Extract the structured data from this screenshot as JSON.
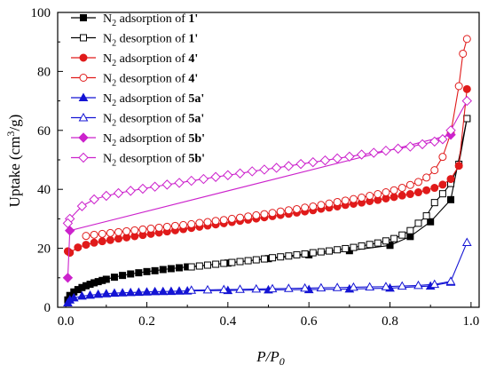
{
  "chart_data": {
    "type": "scatter",
    "xlabel": "P/P0",
    "ylabel": "Uptake (cm3/g)",
    "xlim": [
      -0.02,
      1.02
    ],
    "ylim": [
      0,
      100
    ],
    "x_ticks": [
      0.0,
      0.2,
      0.4,
      0.6,
      0.8,
      1.0
    ],
    "x_tick_labels": [
      "0.0",
      "0.2",
      "0.4",
      "0.6",
      "0.8",
      "1.0"
    ],
    "y_ticks": [
      0,
      20,
      40,
      60,
      80,
      100
    ],
    "y_tick_labels": [
      "0",
      "20",
      "40",
      "60",
      "80",
      "100"
    ],
    "grid": false,
    "legend_position": "top-left",
    "series": [
      {
        "name": "N2 adsorption of 1'",
        "color": "#000000",
        "marker": "square",
        "filled": true,
        "x": [
          0.005,
          0.01,
          0.02,
          0.03,
          0.04,
          0.05,
          0.06,
          0.07,
          0.08,
          0.09,
          0.1,
          0.12,
          0.14,
          0.16,
          0.18,
          0.2,
          0.22,
          0.24,
          0.26,
          0.28,
          0.3,
          0.4,
          0.5,
          0.6,
          0.7,
          0.8,
          0.85,
          0.9,
          0.95,
          0.99
        ],
        "y": [
          2.5,
          4.0,
          5.2,
          6.0,
          6.7,
          7.3,
          7.8,
          8.3,
          8.7,
          9.1,
          9.5,
          10.2,
          10.8,
          11.3,
          11.7,
          12.1,
          12.4,
          12.8,
          13.1,
          13.4,
          13.7,
          15.0,
          16.5,
          17.8,
          19.2,
          21.0,
          24.0,
          29.0,
          36.5,
          64.0
        ]
      },
      {
        "name": "N2 desorption of 1'",
        "color": "#000000",
        "marker": "square",
        "filled": false,
        "x": [
          0.99,
          0.97,
          0.95,
          0.93,
          0.91,
          0.89,
          0.87,
          0.85,
          0.83,
          0.81,
          0.79,
          0.77,
          0.75,
          0.73,
          0.71,
          0.69,
          0.67,
          0.65,
          0.63,
          0.61,
          0.59,
          0.57,
          0.55,
          0.53,
          0.51,
          0.49,
          0.47,
          0.45,
          0.43,
          0.41,
          0.39,
          0.37,
          0.35,
          0.33,
          0.31
        ],
        "y": [
          64.0,
          48.5,
          42.0,
          38.5,
          35.5,
          31.0,
          28.5,
          26.0,
          24.5,
          23.3,
          22.5,
          21.8,
          21.3,
          20.8,
          20.3,
          19.9,
          19.5,
          19.1,
          18.8,
          18.5,
          18.1,
          17.8,
          17.4,
          17.1,
          16.8,
          16.4,
          16.1,
          15.8,
          15.5,
          15.2,
          14.9,
          14.6,
          14.3,
          14.0,
          13.7
        ]
      },
      {
        "name": "N2 adsorption of 4'",
        "color": "#e01a1a",
        "marker": "circle",
        "filled": true,
        "x": [
          0.005,
          0.01,
          0.03,
          0.05,
          0.07,
          0.09,
          0.11,
          0.13,
          0.15,
          0.17,
          0.19,
          0.21,
          0.23,
          0.25,
          0.27,
          0.29,
          0.31,
          0.33,
          0.35,
          0.37,
          0.39,
          0.41,
          0.43,
          0.45,
          0.47,
          0.49,
          0.51,
          0.53,
          0.55,
          0.57,
          0.59,
          0.61,
          0.63,
          0.65,
          0.67,
          0.69,
          0.71,
          0.73,
          0.75,
          0.77,
          0.79,
          0.81,
          0.83,
          0.85,
          0.87,
          0.89,
          0.91,
          0.93,
          0.95,
          0.97,
          0.99
        ],
        "y": [
          19.0,
          18.5,
          20.3,
          21.2,
          21.9,
          22.4,
          22.8,
          23.3,
          23.7,
          24.1,
          24.5,
          24.9,
          25.3,
          25.7,
          26.1,
          26.5,
          26.9,
          27.3,
          27.7,
          28.1,
          28.5,
          28.9,
          29.3,
          29.7,
          30.1,
          30.5,
          30.9,
          31.3,
          31.7,
          32.1,
          32.5,
          32.9,
          33.4,
          33.8,
          34.2,
          34.7,
          35.1,
          35.5,
          36.0,
          36.4,
          36.9,
          37.4,
          37.9,
          38.4,
          39.0,
          39.7,
          40.5,
          41.6,
          43.5,
          48.0,
          74.0
        ]
      },
      {
        "name": "N2 desorption of 4'",
        "color": "#e01a1a",
        "marker": "circle",
        "filled": false,
        "x": [
          0.99,
          0.98,
          0.97,
          0.95,
          0.93,
          0.91,
          0.89,
          0.87,
          0.85,
          0.83,
          0.81,
          0.79,
          0.77,
          0.75,
          0.73,
          0.71,
          0.69,
          0.67,
          0.65,
          0.63,
          0.61,
          0.59,
          0.57,
          0.55,
          0.53,
          0.51,
          0.49,
          0.47,
          0.45,
          0.43,
          0.41,
          0.39,
          0.37,
          0.35,
          0.33,
          0.31,
          0.29,
          0.27,
          0.25,
          0.23,
          0.21,
          0.19,
          0.17,
          0.15,
          0.13,
          0.11,
          0.09,
          0.07,
          0.05
        ],
        "y": [
          91.0,
          86.0,
          75.0,
          59.0,
          51.0,
          46.5,
          44.0,
          42.5,
          41.5,
          40.5,
          39.7,
          39.0,
          38.4,
          37.8,
          37.2,
          36.7,
          36.2,
          35.7,
          35.2,
          34.7,
          34.2,
          33.8,
          33.3,
          32.9,
          32.5,
          32.0,
          31.6,
          31.2,
          30.8,
          30.4,
          30.0,
          29.6,
          29.3,
          28.9,
          28.6,
          28.2,
          27.9,
          27.6,
          27.3,
          27.0,
          26.7,
          26.4,
          26.1,
          25.8,
          25.5,
          25.2,
          24.9,
          24.6,
          24.2
        ]
      },
      {
        "name": "N2 adsorption of 5a'",
        "color": "#1414d4",
        "marker": "triangle",
        "filled": true,
        "x": [
          0.005,
          0.01,
          0.02,
          0.04,
          0.06,
          0.08,
          0.1,
          0.12,
          0.14,
          0.16,
          0.18,
          0.2,
          0.22,
          0.24,
          0.26,
          0.28,
          0.3,
          0.4,
          0.5,
          0.6,
          0.7,
          0.8,
          0.9,
          0.95
        ],
        "y": [
          1.5,
          2.5,
          3.2,
          3.8,
          4.1,
          4.4,
          4.6,
          4.8,
          4.9,
          5.0,
          5.1,
          5.2,
          5.3,
          5.35,
          5.4,
          5.5,
          5.55,
          5.7,
          5.9,
          6.0,
          6.2,
          6.5,
          7.2,
          8.5
        ]
      },
      {
        "name": "N2 desorption of 5a'",
        "color": "#1414d4",
        "marker": "triangle",
        "filled": false,
        "x": [
          0.99,
          0.95,
          0.91,
          0.87,
          0.83,
          0.79,
          0.75,
          0.71,
          0.67,
          0.63,
          0.59,
          0.55,
          0.51,
          0.47,
          0.43,
          0.39,
          0.35,
          0.31
        ],
        "y": [
          22.0,
          8.8,
          7.8,
          7.4,
          7.2,
          7.0,
          6.9,
          6.8,
          6.7,
          6.6,
          6.5,
          6.4,
          6.3,
          6.2,
          6.1,
          6.0,
          5.9,
          5.8
        ]
      },
      {
        "name": "N2 adsorption of 5b'",
        "color": "#cc22cc",
        "marker": "diamond",
        "filled": true,
        "x": [
          0.005,
          0.01,
          0.95
        ],
        "y": [
          10.0,
          26.0,
          58.5
        ]
      },
      {
        "name": "N2 desorption of 5b'",
        "color": "#cc22cc",
        "marker": "diamond",
        "filled": false,
        "x": [
          0.99,
          0.95,
          0.93,
          0.91,
          0.88,
          0.85,
          0.82,
          0.79,
          0.76,
          0.73,
          0.7,
          0.67,
          0.64,
          0.61,
          0.58,
          0.55,
          0.52,
          0.49,
          0.46,
          0.43,
          0.4,
          0.37,
          0.34,
          0.31,
          0.28,
          0.25,
          0.22,
          0.19,
          0.16,
          0.13,
          0.1,
          0.07,
          0.04,
          0.01,
          0.005
        ],
        "y": [
          70.0,
          60.0,
          57.0,
          56.2,
          55.3,
          54.5,
          53.8,
          53.1,
          52.4,
          51.8,
          51.1,
          50.5,
          49.8,
          49.2,
          48.6,
          47.9,
          47.3,
          46.7,
          46.1,
          45.4,
          44.8,
          44.2,
          43.5,
          42.9,
          42.2,
          41.6,
          40.9,
          40.2,
          39.5,
          38.7,
          37.8,
          36.6,
          34.3,
          30.0,
          28.5
        ]
      }
    ]
  }
}
